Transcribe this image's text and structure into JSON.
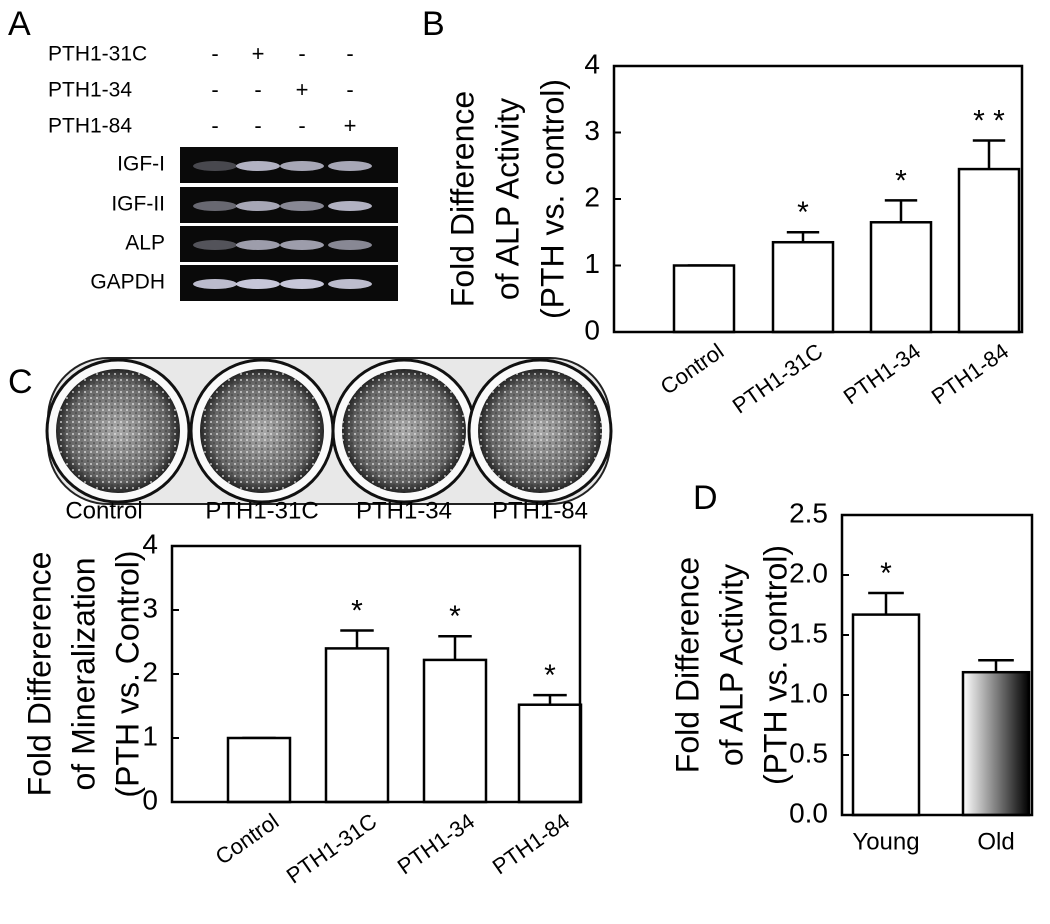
{
  "panel_labels": [
    "A",
    "B",
    "C",
    "D"
  ],
  "gel": {
    "treatments": [
      {
        "name": "PTH1-31C",
        "marks": [
          "-",
          "+",
          "-",
          "-"
        ]
      },
      {
        "name": "PTH1-34",
        "marks": [
          "-",
          "-",
          "+",
          "-"
        ]
      },
      {
        "name": "PTH1-84",
        "marks": [
          "-",
          "-",
          "-",
          "+"
        ]
      }
    ],
    "bands": [
      "IGF-I",
      "IGF-II",
      "ALP",
      "GAPDH"
    ]
  },
  "plate": {
    "labels": [
      "Control",
      "PTH1-31C",
      "PTH1-34",
      "PTH1-84"
    ]
  },
  "chart_data": [
    {
      "type": "bar",
      "ylabel": [
        "Fold Difference",
        "of ALP Activity",
        "(PTH vs. control)"
      ],
      "categories": [
        "Control",
        "PTH1-31C",
        "PTH1-34",
        "PTH1-84"
      ],
      "values": [
        1,
        1.35,
        1.65,
        2.45
      ],
      "errors": [
        0,
        0.15,
        0.33,
        0.43
      ],
      "significance": [
        null,
        "*",
        "*",
        "* *"
      ],
      "colors": [
        "#ffffff",
        "#ffffff",
        "#ffffff",
        "#ffffff"
      ],
      "ylim": [
        0,
        4
      ],
      "yticks": [
        0,
        1,
        2,
        3,
        4
      ]
    },
    {
      "type": "bar",
      "ylabel": [
        "Fold Differerence",
        "of Mineralization",
        "(PTH vs. Control)"
      ],
      "categories": [
        "Control",
        "PTH1-31C",
        "PTH1-34",
        "PTH1-84"
      ],
      "values": [
        1,
        2.4,
        2.22,
        1.52
      ],
      "errors": [
        0,
        0.28,
        0.37,
        0.15
      ],
      "significance": [
        null,
        "*",
        "*",
        "*"
      ],
      "colors": [
        "#ffffff",
        "#ffffff",
        "#ffffff",
        "#ffffff"
      ],
      "ylim": [
        0,
        4
      ],
      "yticks": [
        0,
        1,
        2,
        3,
        4
      ]
    },
    {
      "type": "bar",
      "ylabel": [
        "Fold Difference",
        "of ALP Activity",
        "(PTH vs. control)"
      ],
      "categories": [
        "Young",
        "Old"
      ],
      "values": [
        1.67,
        1.19
      ],
      "errors": [
        0.18,
        0.1
      ],
      "significance": [
        "*",
        null
      ],
      "colors": [
        "#ffffff",
        [
          "#ffffff",
          "#000000"
        ]
      ],
      "ylim": [
        0,
        2.5
      ],
      "yticks": [
        {
          "value": 0,
          "label": "0.0"
        },
        0.5,
        {
          "value": 1,
          "label": "1.0"
        },
        1.5,
        {
          "value": 2,
          "label": "2.0"
        },
        2.5
      ]
    }
  ]
}
